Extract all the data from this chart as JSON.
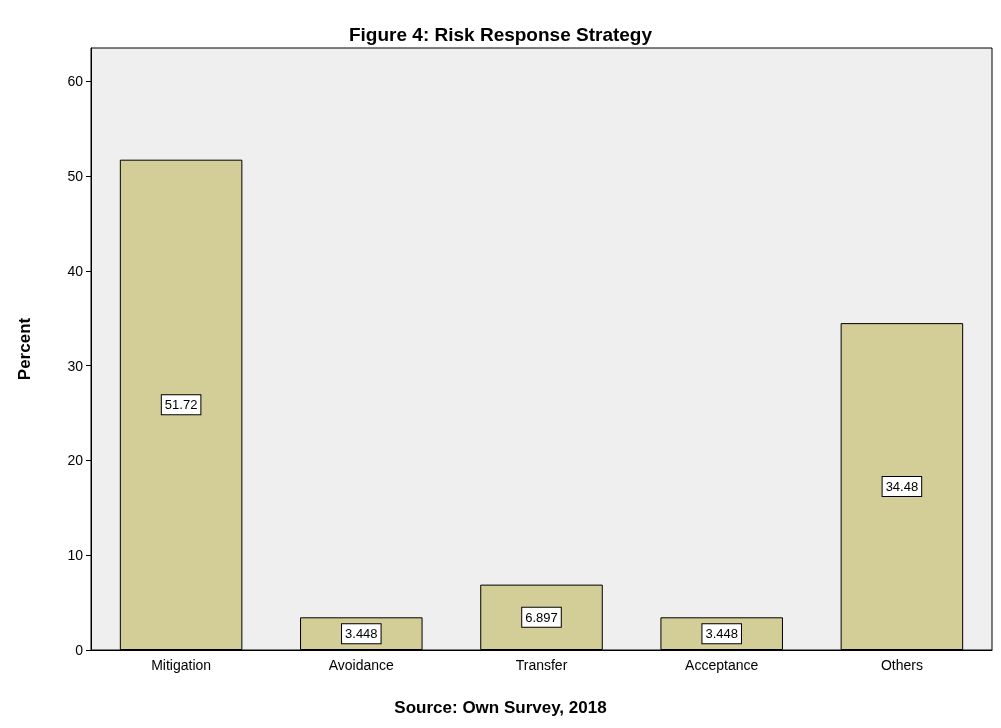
{
  "chart_data": {
    "type": "bar",
    "title": "Figure 4: Risk Response Strategy",
    "ylabel": "Percent",
    "annotations": [
      "Source: Own Survey, 2018"
    ],
    "categories": [
      "Mitigation",
      "Avoidance",
      "Transfer",
      "Acceptance",
      "Others"
    ],
    "values": [
      51.72,
      3.448,
      6.897,
      3.448,
      34.48
    ],
    "color": "#d3cd98",
    "ylim": [
      0,
      63.5
    ],
    "yticks": [
      0,
      10,
      20,
      30,
      40,
      50,
      60
    ],
    "grid": false,
    "data_labels": true
  }
}
